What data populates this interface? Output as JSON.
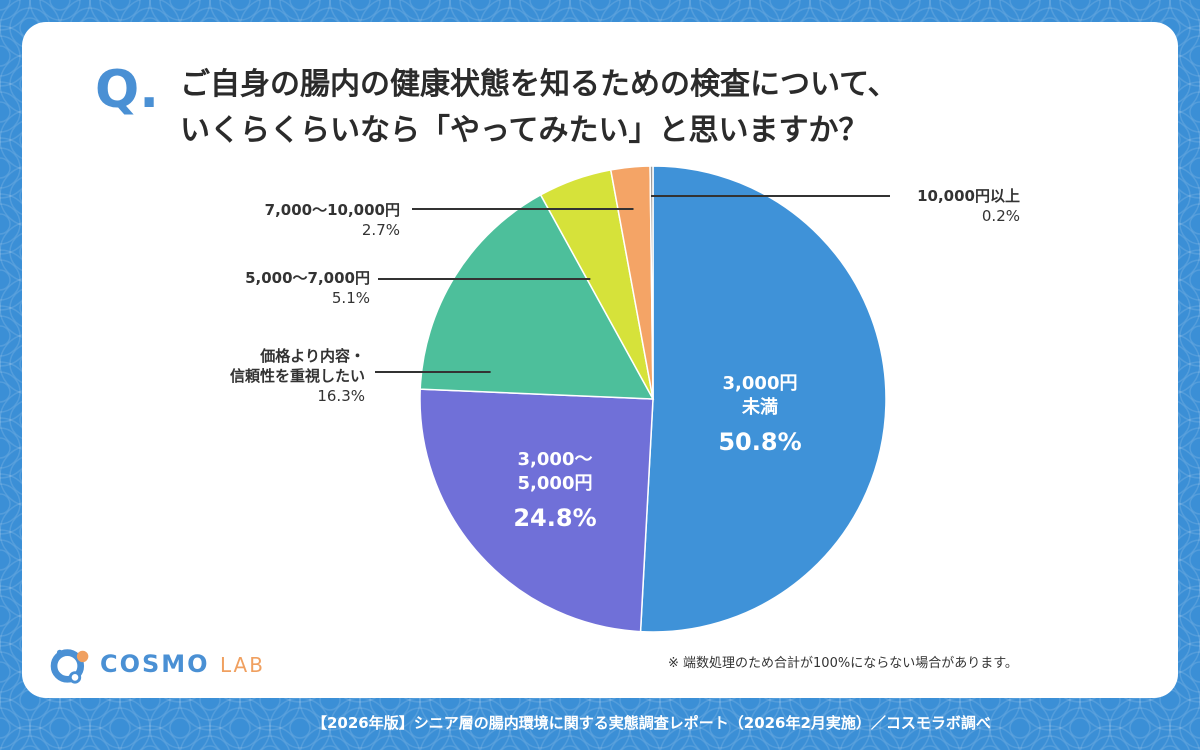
{
  "question": {
    "mark": "Q.",
    "line1": "ご自身の腸内の健康状態を知るための検査について、",
    "line2": "いくらくらいなら「やってみたい」と思いますか？"
  },
  "chart_data": {
    "type": "pie",
    "start": "12 o'clock, clockwise",
    "slices": [
      {
        "label": "3,000円未満",
        "label_lines": [
          "3,000円",
          "未満"
        ],
        "value": 50.8,
        "value_text": "50.8%",
        "color": "#3f92d8"
      },
      {
        "label": "3,000〜5,000円",
        "label_lines": [
          "3,000〜",
          "5,000円"
        ],
        "value": 24.8,
        "value_text": "24.8%",
        "color": "#7070d8"
      },
      {
        "label": "価格より内容・信頼性を重視したい",
        "label_lines": [
          "価格より内容・",
          "信頼性を重視したい"
        ],
        "value": 16.3,
        "value_text": "16.3%",
        "color": "#4dbf9b"
      },
      {
        "label": "5,000〜7,000円",
        "label_lines": [
          "5,000〜7,000円"
        ],
        "value": 5.1,
        "value_text": "5.1%",
        "color": "#d6e23a"
      },
      {
        "label": "7,000〜10,000円",
        "label_lines": [
          "7,000〜10,000円"
        ],
        "value": 2.7,
        "value_text": "2.7%",
        "color": "#f4a466"
      },
      {
        "label": "10,000円以上",
        "label_lines": [
          "10,000円以上"
        ],
        "value": 0.2,
        "value_text": "0.2%",
        "color": "#9a9a9a"
      }
    ]
  },
  "note": "※ 端数処理のため合計が100%にならない場合があります。",
  "logo": {
    "word1": "COSMO",
    "word2": "LAB"
  },
  "footer": "【2026年版】シニア層の腸内環境に関する実態調査レポート（2026年2月実施）／コスモラボ調べ"
}
